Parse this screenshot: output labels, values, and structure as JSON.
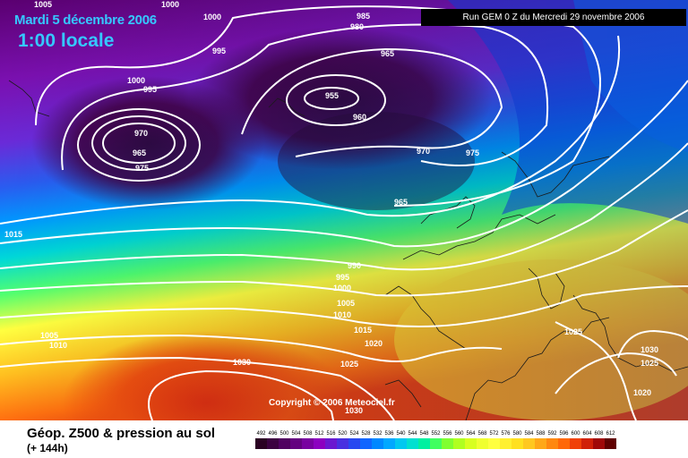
{
  "header": {
    "date": "Mardi 5 décembre 2006",
    "time": "1:00 locale",
    "run": "Run GEM 0 Z du Mercredi 29 novembre 2006"
  },
  "copyright": "Copyright © 2006 Meteociel.fr",
  "footer": {
    "title": "Géop. Z500 & pression au sol",
    "subtitle": "(+ 144h)"
  },
  "isobar_labels": [
    "1005",
    "1000",
    "1000",
    "985",
    "980",
    "965",
    "995",
    "1000",
    "995",
    "955",
    "960",
    "970",
    "965",
    "975",
    "975",
    "970",
    "965",
    "1015",
    "990",
    "995",
    "1000",
    "1005",
    "1010",
    "1015",
    "1020",
    "1025",
    "1005",
    "1010",
    "1030",
    "1025",
    "1030",
    "1025",
    "1020",
    "1030"
  ],
  "scale": {
    "labels": [
      "492",
      "496",
      "500",
      "504",
      "508",
      "512",
      "516",
      "520",
      "524",
      "528",
      "532",
      "536",
      "540",
      "544",
      "548",
      "552",
      "556",
      "560",
      "564",
      "568",
      "572",
      "576",
      "580",
      "584",
      "588",
      "592",
      "596",
      "600",
      "604",
      "608",
      "612"
    ],
    "colors": [
      "#2a0022",
      "#3c0040",
      "#500060",
      "#640080",
      "#7800a0",
      "#8c00c0",
      "#6a18d0",
      "#4830e0",
      "#2848f0",
      "#1066ff",
      "#0088ff",
      "#00a8ff",
      "#00c8f0",
      "#00e0d0",
      "#00f0a0",
      "#40ff60",
      "#80ff30",
      "#b0ff20",
      "#d8ff20",
      "#f0ff30",
      "#ffff40",
      "#fff030",
      "#ffe020",
      "#ffc820",
      "#ffa818",
      "#ff8810",
      "#ff6808",
      "#f04008",
      "#d02008",
      "#a00808",
      "#600000"
    ]
  }
}
